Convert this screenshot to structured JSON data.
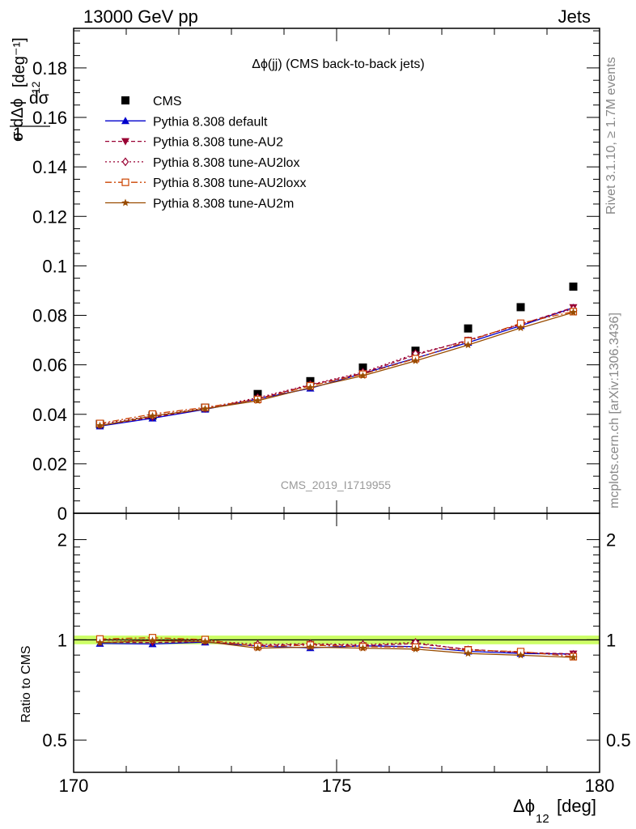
{
  "header": {
    "left": "13000 GeV pp",
    "right": "Jets"
  },
  "side_text": {
    "rivet": "Rivet 3.1.10, ≥ 1.7M events",
    "mcplots": "mcplots.cern.ch [arXiv:1306.3436]"
  },
  "chart_data": {
    "type": "scatter",
    "title": "Δϕ(jj) (CMS back-to-back jets)",
    "analysis_label": "CMS_2019_I1719955",
    "xlabel": "Δϕ₁₂ [deg]",
    "ylabel_top": "1/σ dσ/dΔϕ₁₂ [deg⁻¹]",
    "ylabel_ratio": "Ratio to CMS",
    "xlim": [
      170,
      180
    ],
    "ylim_top": [
      0,
      0.196
    ],
    "ylim_ratio": [
      0.4,
      2.4
    ],
    "ratio_log_scale": true,
    "x_ticks": [
      "170",
      "175",
      "180"
    ],
    "y_ticks_top": [
      "0",
      "0.02",
      "0.04",
      "0.06",
      "0.08",
      "0.1",
      "0.12",
      "0.14",
      "0.16",
      "0.18"
    ],
    "y_ticks_ratio": [
      "0.5",
      "1",
      "2"
    ],
    "legend_position": "top-left",
    "x": [
      170.5,
      171.5,
      172.5,
      173.5,
      174.5,
      175.5,
      176.5,
      177.5,
      178.5,
      179.5
    ],
    "series": [
      {
        "name": "CMS",
        "color": "#000000",
        "marker": "square-filled",
        "line": "none",
        "values": [
          0.0361,
          0.0395,
          0.0427,
          0.0482,
          0.0534,
          0.0589,
          0.0657,
          0.0747,
          0.0833,
          0.0916
        ],
        "ratio": [
          1,
          1,
          1,
          1,
          1,
          1,
          1,
          1,
          1,
          1
        ]
      },
      {
        "name": "Pythia 8.308 default",
        "color": "#0000cc",
        "marker": "triangle-up-filled",
        "line": "solid",
        "values": [
          0.0352,
          0.0384,
          0.042,
          0.0462,
          0.0505,
          0.0565,
          0.0627,
          0.069,
          0.0758,
          0.0831
        ],
        "ratio": [
          0.975,
          0.972,
          0.984,
          0.958,
          0.946,
          0.959,
          0.954,
          0.924,
          0.91,
          0.907
        ]
      },
      {
        "name": "Pythia 8.308 tune-AU2",
        "color": "#990033",
        "marker": "triangle-down-filled",
        "line": "dashed",
        "values": [
          0.0355,
          0.0388,
          0.0422,
          0.0463,
          0.0518,
          0.0566,
          0.064,
          0.07,
          0.0763,
          0.0832
        ],
        "ratio": [
          0.983,
          0.982,
          0.988,
          0.961,
          0.97,
          0.961,
          0.974,
          0.937,
          0.916,
          0.908
        ]
      },
      {
        "name": "Pythia 8.308 tune-AU2lox",
        "color": "#990033",
        "marker": "diamond-open",
        "line": "dotted",
        "values": [
          0.036,
          0.0394,
          0.0425,
          0.0467,
          0.052,
          0.057,
          0.0645,
          0.0697,
          0.0765,
          0.0826
        ],
        "ratio": [
          0.997,
          0.997,
          0.995,
          0.969,
          0.974,
          0.968,
          0.982,
          0.933,
          0.918,
          0.902
        ]
      },
      {
        "name": "Pythia 8.308 tune-AU2loxx",
        "color": "#cc4400",
        "marker": "square-open",
        "line": "dashdot",
        "values": [
          0.0363,
          0.0401,
          0.0428,
          0.046,
          0.0515,
          0.0562,
          0.0625,
          0.0696,
          0.0768,
          0.0815
        ],
        "ratio": [
          1.006,
          1.015,
          1.002,
          0.954,
          0.964,
          0.954,
          0.951,
          0.932,
          0.922,
          0.89
        ]
      },
      {
        "name": "Pythia 8.308 tune-AU2m",
        "color": "#994c00",
        "marker": "star-filled",
        "line": "solid",
        "values": [
          0.0354,
          0.0393,
          0.0422,
          0.0455,
          0.0508,
          0.0556,
          0.0616,
          0.068,
          0.0749,
          0.0812
        ],
        "ratio": [
          0.981,
          0.995,
          0.988,
          0.944,
          0.951,
          0.944,
          0.938,
          0.91,
          0.899,
          0.886
        ]
      }
    ],
    "ratio_band": {
      "lower": 0.97,
      "upper": 1.03,
      "color": "#ccff66"
    }
  }
}
